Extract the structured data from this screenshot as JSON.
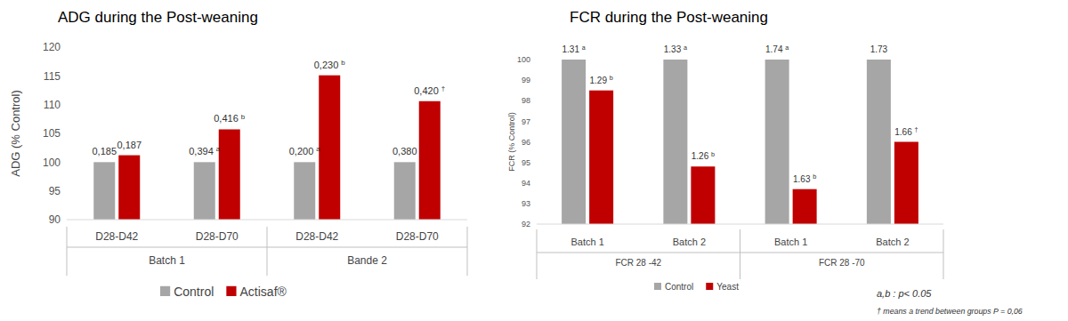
{
  "chart_data": [
    {
      "type": "bar",
      "title": "ADG during the Post-weaning",
      "y_label": "ADG (% Control)",
      "categories": [
        "D28-D42",
        "D28-D70",
        "D28-D42",
        "D28-D70"
      ],
      "group_labels": [
        "Batch 1",
        "Bande 2"
      ],
      "series": [
        {
          "name": "Control",
          "color": "#a6a6a6",
          "values": [
            100,
            100,
            100,
            100
          ],
          "printed_labels": [
            "0,185",
            "0,394 a",
            "0,200 a",
            "0,380"
          ]
        },
        {
          "name": "Actisaf®",
          "color": "#c00000",
          "values": [
            101.2,
            105.7,
            115.1,
            110.6
          ],
          "printed_labels": [
            "0,187",
            "0,416 b",
            "0,230 b",
            "0,420 †"
          ]
        }
      ],
      "ylim": [
        90,
        120
      ],
      "yticks": [
        90,
        95,
        100,
        105,
        110,
        115,
        120
      ],
      "grid": false,
      "legend": "bottom"
    },
    {
      "type": "bar",
      "title": "FCR during the Post-weaning",
      "y_label": "FCR (% Control)",
      "categories": [
        "Batch 1",
        "Batch 2",
        "Batch 1",
        "Batch 2"
      ],
      "group_labels": [
        "FCR 28 -42",
        "FCR 28 -70"
      ],
      "series": [
        {
          "name": "Control",
          "color": "#a6a6a6",
          "values": [
            100,
            100,
            100,
            100
          ],
          "printed_labels": [
            "1.31 a",
            "1.33 a",
            "1.74 a",
            "1.73"
          ]
        },
        {
          "name": "Yeast",
          "color": "#c00000",
          "values": [
            98.5,
            94.8,
            93.7,
            96.0
          ],
          "printed_labels": [
            "1.29 b",
            "1.26 b",
            "1.63 b",
            "1.66 †"
          ]
        }
      ],
      "ylim": [
        92,
        100
      ],
      "yticks": [
        92,
        93,
        94,
        95,
        96,
        97,
        98,
        99,
        100
      ],
      "grid": false,
      "legend": "bottom",
      "annotations": [
        "a,b : p< 0.05",
        "† means a trend between groups P = 0,06"
      ]
    }
  ]
}
